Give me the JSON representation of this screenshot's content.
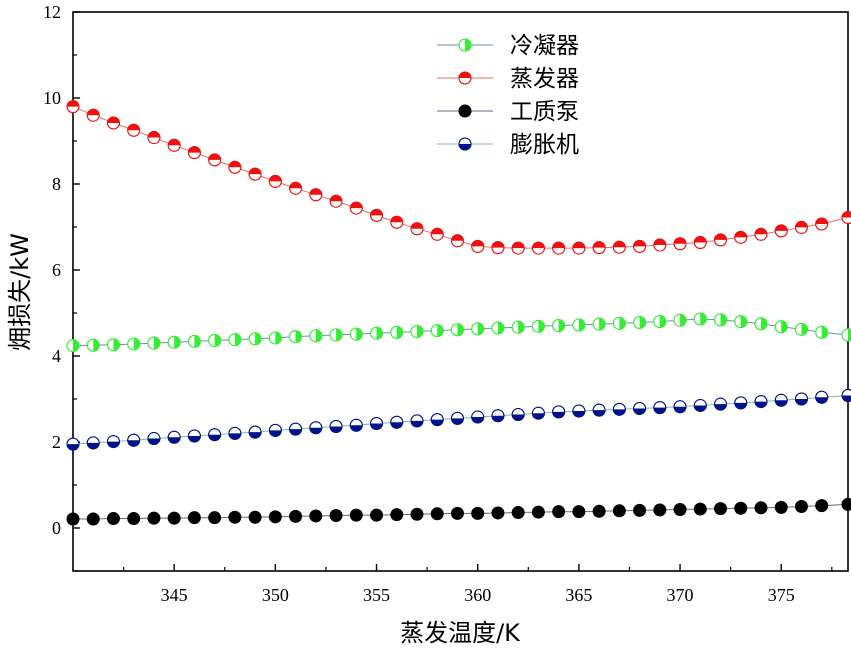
{
  "chart_data": {
    "type": "line",
    "title": "",
    "xlabel": "蒸发温度/K",
    "ylabel": "㶲损失/kW",
    "xlim": [
      340,
      378.3
    ],
    "ylim": [
      -1,
      12
    ],
    "xticks": [
      345,
      350,
      355,
      360,
      365,
      370,
      375
    ],
    "yticks": [
      0,
      2,
      4,
      6,
      8,
      10,
      12
    ],
    "grid": false,
    "legend": "top-center",
    "series": [
      {
        "name": "冷凝器",
        "color": "#33ee33",
        "line_color": "#6b8fae",
        "x": [
          340,
          341,
          342,
          343,
          344,
          345,
          346,
          347,
          348,
          349,
          350,
          351,
          352,
          353,
          354,
          355,
          356,
          357,
          358,
          359,
          360,
          361,
          362,
          363,
          364,
          365,
          366,
          367,
          368,
          369,
          370,
          371,
          372,
          373,
          374,
          375,
          376,
          377,
          378.3
        ],
        "y": [
          4.24,
          4.25,
          4.26,
          4.28,
          4.3,
          4.32,
          4.34,
          4.36,
          4.38,
          4.4,
          4.42,
          4.45,
          4.47,
          4.49,
          4.51,
          4.53,
          4.55,
          4.57,
          4.59,
          4.61,
          4.63,
          4.65,
          4.67,
          4.69,
          4.71,
          4.72,
          4.74,
          4.76,
          4.78,
          4.8,
          4.83,
          4.86,
          4.84,
          4.8,
          4.75,
          4.68,
          4.62,
          4.55,
          4.49
        ]
      },
      {
        "name": "蒸发器",
        "color": "#ee1111",
        "line_color": "#e07070",
        "x": [
          340,
          341,
          342,
          343,
          344,
          345,
          346,
          347,
          348,
          349,
          350,
          351,
          352,
          353,
          354,
          355,
          356,
          357,
          358,
          359,
          360,
          361,
          362,
          363,
          364,
          365,
          366,
          367,
          368,
          369,
          370,
          371,
          372,
          373,
          374,
          375,
          376,
          377,
          378.3
        ],
        "y": [
          9.8,
          9.6,
          9.42,
          9.25,
          9.08,
          8.9,
          8.73,
          8.56,
          8.39,
          8.23,
          8.06,
          7.9,
          7.75,
          7.6,
          7.44,
          7.27,
          7.11,
          6.96,
          6.83,
          6.68,
          6.55,
          6.52,
          6.51,
          6.51,
          6.51,
          6.51,
          6.52,
          6.53,
          6.55,
          6.58,
          6.61,
          6.64,
          6.7,
          6.76,
          6.83,
          6.91,
          6.99,
          7.07,
          7.22
        ]
      },
      {
        "name": "工质泵",
        "color": "#000000",
        "line_color": "#5a6f8f",
        "x": [
          340,
          341,
          342,
          343,
          344,
          345,
          346,
          347,
          348,
          349,
          350,
          351,
          352,
          353,
          354,
          355,
          356,
          357,
          358,
          359,
          360,
          361,
          362,
          363,
          364,
          365,
          366,
          367,
          368,
          369,
          370,
          371,
          372,
          373,
          374,
          375,
          376,
          377,
          378.3
        ],
        "y": [
          0.21,
          0.21,
          0.22,
          0.22,
          0.23,
          0.23,
          0.24,
          0.24,
          0.25,
          0.25,
          0.26,
          0.27,
          0.28,
          0.29,
          0.3,
          0.3,
          0.31,
          0.32,
          0.33,
          0.34,
          0.34,
          0.35,
          0.36,
          0.37,
          0.38,
          0.38,
          0.39,
          0.4,
          0.41,
          0.42,
          0.43,
          0.44,
          0.45,
          0.46,
          0.47,
          0.48,
          0.5,
          0.52,
          0.55
        ]
      },
      {
        "name": "膨胀机",
        "color": "#00138a",
        "line_color": "#7fb8b0",
        "x": [
          340,
          341,
          342,
          343,
          344,
          345,
          346,
          347,
          348,
          349,
          350,
          351,
          352,
          353,
          354,
          355,
          356,
          357,
          358,
          359,
          360,
          361,
          362,
          363,
          364,
          365,
          366,
          367,
          368,
          369,
          370,
          371,
          372,
          373,
          374,
          375,
          376,
          377,
          378.3
        ],
        "y": [
          1.95,
          1.98,
          2.01,
          2.04,
          2.08,
          2.11,
          2.14,
          2.17,
          2.2,
          2.23,
          2.27,
          2.3,
          2.33,
          2.36,
          2.39,
          2.43,
          2.46,
          2.49,
          2.52,
          2.55,
          2.58,
          2.61,
          2.64,
          2.67,
          2.7,
          2.72,
          2.74,
          2.76,
          2.78,
          2.8,
          2.82,
          2.85,
          2.88,
          2.91,
          2.94,
          2.97,
          3.0,
          3.04,
          3.08
        ]
      }
    ]
  }
}
